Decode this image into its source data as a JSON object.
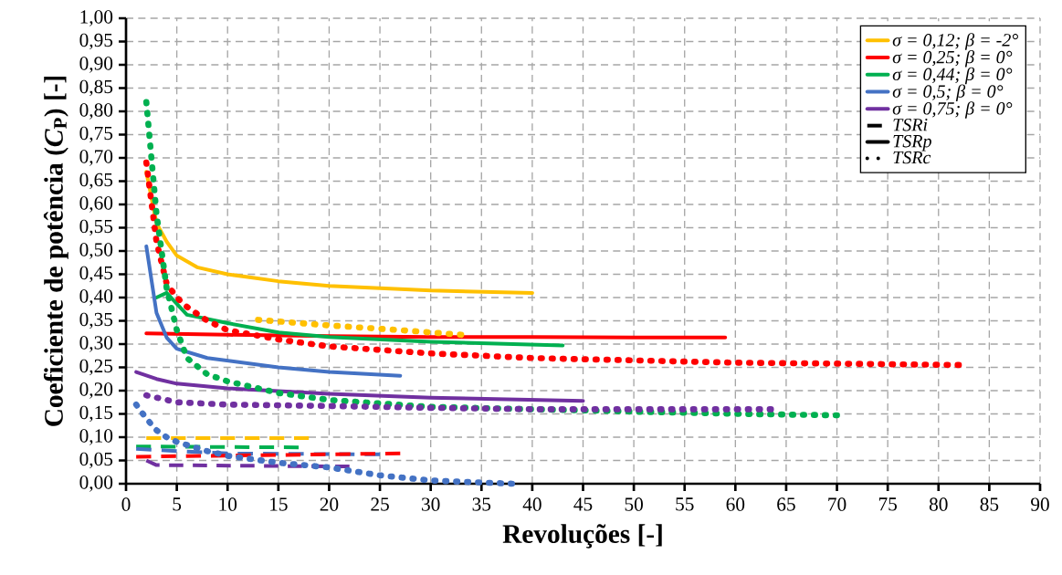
{
  "chart_data": {
    "type": "line",
    "xlabel": "Revoluções [-]",
    "ylabel": "Coeficiente de potência (*C*$_{P}$) [-]",
    "xlim": [
      0,
      90
    ],
    "ylim": [
      0,
      1
    ],
    "xticks": [
      0,
      5,
      10,
      15,
      20,
      25,
      30,
      35,
      40,
      45,
      50,
      55,
      60,
      65,
      70,
      75,
      80,
      85,
      90
    ],
    "yticks": [
      {
        "value": 0,
        "label": "0,00"
      },
      {
        "value": 0.05,
        "label": "0,05"
      },
      {
        "value": 0.1,
        "label": "0,10"
      },
      {
        "value": 0.15,
        "label": "0,15"
      },
      {
        "value": 0.2,
        "label": "0,20"
      },
      {
        "value": 0.25,
        "label": "0,25"
      },
      {
        "value": 0.3,
        "label": "0,30"
      },
      {
        "value": 0.35,
        "label": "0,35"
      },
      {
        "value": 0.4,
        "label": "0,40"
      },
      {
        "value": 0.45,
        "label": "0,45"
      },
      {
        "value": 0.5,
        "label": "0,50"
      },
      {
        "value": 0.55,
        "label": "0,55"
      },
      {
        "value": 0.6,
        "label": "0,60"
      },
      {
        "value": 0.65,
        "label": "0,65"
      },
      {
        "value": 0.7,
        "label": "0,70"
      },
      {
        "value": 0.75,
        "label": "0,75"
      },
      {
        "value": 0.8,
        "label": "0,80"
      },
      {
        "value": 0.85,
        "label": "0,85"
      },
      {
        "value": 0.9,
        "label": "0,90"
      },
      {
        "value": 0.95,
        "label": "0,95"
      },
      {
        "value": 1,
        "label": "1,00"
      }
    ],
    "grid": true,
    "legend": "top right",
    "marker": "none",
    "series": [
      {
        "name": "σ =  0,12; β = -2°",
        "color": "#ffc000",
        "line_style": "solid",
        "x": [
          2,
          3,
          4,
          5,
          7,
          10,
          15,
          20,
          30,
          40
        ],
        "values": [
          0.67,
          0.56,
          0.52,
          0.49,
          0.465,
          0.45,
          0.435,
          0.425,
          0.415,
          0.41
        ]
      },
      {
        "name": "σ =  0,25; β = 0°",
        "color": "#ff0000",
        "line_style": "solid",
        "x": [
          2,
          10,
          20,
          30,
          40,
          50,
          59
        ],
        "values": [
          0.323,
          0.32,
          0.317,
          0.315,
          0.315,
          0.314,
          0.314
        ]
      },
      {
        "name": "σ =  0,44; β = 0°",
        "color": "#00b050",
        "line_style": "solid",
        "x": [
          3,
          4,
          6,
          10,
          15,
          20,
          30,
          43
        ],
        "values": [
          0.4,
          0.41,
          0.363,
          0.345,
          0.325,
          0.315,
          0.305,
          0.297
        ]
      },
      {
        "name": "σ =  0,5; β = 0°",
        "color": "#4472c4",
        "line_style": "solid",
        "x": [
          2,
          3,
          4,
          5,
          8,
          15,
          20,
          27
        ],
        "values": [
          0.51,
          0.367,
          0.314,
          0.29,
          0.27,
          0.25,
          0.24,
          0.232
        ]
      },
      {
        "name": "σ =  0,75; β = 0°",
        "color": "#7030a0",
        "line_style": "solid",
        "x": [
          1,
          3,
          5,
          10,
          20,
          30,
          45
        ],
        "values": [
          0.24,
          0.225,
          0.215,
          0.205,
          0.193,
          0.185,
          0.178
        ]
      },
      {
        "name": "TSRi",
        "color": "#000000",
        "line_style": "dashed"
      },
      {
        "name": "TSRp",
        "color": "#000000",
        "line_style": "solid"
      },
      {
        "name": "TSRc",
        "color": "#000000",
        "line_style": "dotted"
      },
      {
        "color": "#ffc000",
        "line_style": "dashed",
        "x": [
          2,
          18
        ],
        "values": [
          0.098,
          0.098
        ]
      },
      {
        "color": "#00b050",
        "line_style": "dashed",
        "x": [
          1,
          17
        ],
        "values": [
          0.08,
          0.078
        ]
      },
      {
        "color": "#4472c4",
        "line_style": "dashed",
        "x": [
          1,
          5,
          10,
          25
        ],
        "values": [
          0.075,
          0.07,
          0.065,
          0.063
        ]
      },
      {
        "color": "#ff0000",
        "line_style": "dashed",
        "x": [
          1,
          27
        ],
        "values": [
          0.058,
          0.065
        ]
      },
      {
        "color": "#7030a0",
        "line_style": "dashed",
        "x": [
          2,
          3,
          22
        ],
        "values": [
          0.05,
          0.04,
          0.037
        ]
      },
      {
        "color": "#ffc000",
        "line_style": "dotted",
        "x": [
          13,
          20,
          27,
          33
        ],
        "values": [
          0.352,
          0.34,
          0.33,
          0.32
        ]
      },
      {
        "color": "#ff0000",
        "line_style": "dotted",
        "x": [
          2,
          3,
          4,
          5,
          6,
          8,
          10,
          15,
          20,
          30,
          40,
          50,
          60,
          70,
          82
        ],
        "values": [
          0.69,
          0.52,
          0.43,
          0.4,
          0.38,
          0.35,
          0.33,
          0.31,
          0.295,
          0.28,
          0.27,
          0.265,
          0.26,
          0.258,
          0.255
        ]
      },
      {
        "color": "#00b050",
        "line_style": "dotted",
        "x": [
          2,
          2.5,
          3,
          4,
          5,
          6,
          8,
          10,
          15,
          20,
          30,
          40,
          50,
          60,
          70
        ],
        "values": [
          0.82,
          0.7,
          0.58,
          0.42,
          0.33,
          0.27,
          0.235,
          0.22,
          0.195,
          0.18,
          0.165,
          0.16,
          0.155,
          0.15,
          0.147
        ]
      },
      {
        "color": "#7030a0",
        "line_style": "dotted",
        "x": [
          2,
          5,
          10,
          20,
          30,
          40,
          50,
          63.5
        ],
        "values": [
          0.19,
          0.175,
          0.17,
          0.167,
          0.163,
          0.16,
          0.16,
          0.16
        ]
      },
      {
        "color": "#4472c4",
        "line_style": "dotted",
        "x": [
          1,
          2,
          3,
          4,
          5,
          8,
          10,
          15,
          20,
          25,
          30,
          38
        ],
        "values": [
          0.17,
          0.14,
          0.115,
          0.1,
          0.09,
          0.07,
          0.06,
          0.045,
          0.035,
          0.018,
          0.007,
          0
        ]
      }
    ]
  }
}
